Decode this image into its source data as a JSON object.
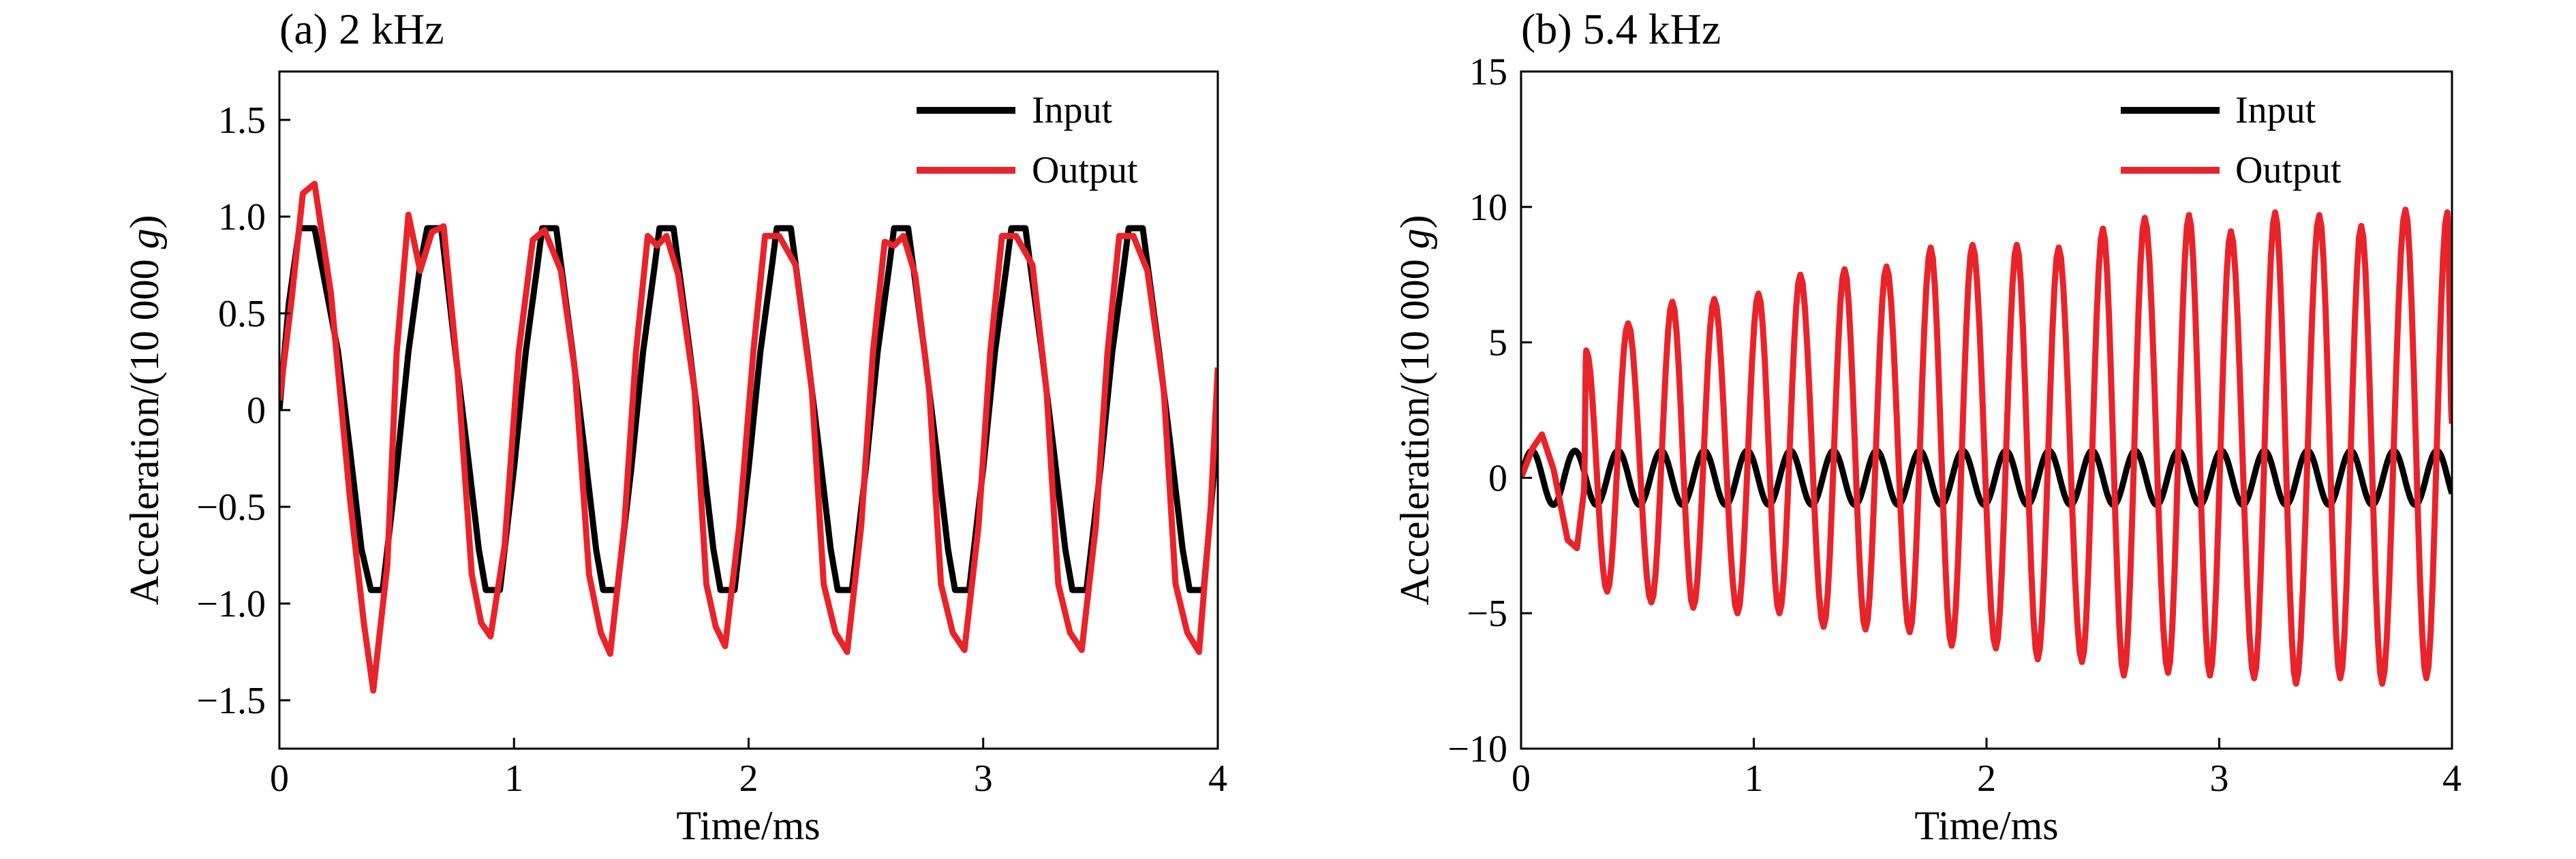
{
  "figure": {
    "background": "#ffffff"
  },
  "chart_data": [
    {
      "type": "line",
      "title": "(a) 2 kHz",
      "xlabel": "Time/ms",
      "ylabel_prefix": "Acceleration/(10 000 ",
      "ylabel_italic": "g",
      "ylabel_suffix": ")",
      "xlim": [
        0,
        4
      ],
      "ylim": [
        -1.75,
        1.75
      ],
      "xticks": [
        0,
        1,
        2,
        3,
        4
      ],
      "xtick_labels": [
        "0",
        "1",
        "2",
        "3",
        "4"
      ],
      "yticks": [
        -1.5,
        -1.0,
        -0.5,
        0,
        0.5,
        1.0,
        1.5
      ],
      "ytick_labels": [
        "−1.5",
        "−1.0",
        "−0.5",
        "0",
        "0.5",
        "1.0",
        "1.5"
      ],
      "grid": false,
      "legend_position": "top-right",
      "series": [
        {
          "name": "Input",
          "color": "#000000",
          "points": [
            [
              0,
              0
            ],
            [
              0.04,
              0.55
            ],
            [
              0.085,
              0.94
            ],
            [
              0.15,
              0.94
            ],
            [
              0.25,
              0.3
            ],
            [
              0.3,
              -0.2
            ],
            [
              0.35,
              -0.72
            ],
            [
              0.39,
              -0.93
            ],
            [
              0.44,
              -0.93
            ],
            [
              0.5,
              -0.3
            ],
            [
              0.55,
              0.3
            ],
            [
              0.6,
              0.75
            ],
            [
              0.63,
              0.94
            ],
            [
              0.69,
              0.94
            ],
            [
              0.75,
              0.3
            ],
            [
              0.8,
              -0.2
            ],
            [
              0.85,
              -0.72
            ],
            [
              0.88,
              -0.93
            ],
            [
              0.94,
              -0.93
            ],
            [
              1.0,
              -0.3
            ],
            [
              1.05,
              0.3
            ],
            [
              1.1,
              0.75
            ],
            [
              1.12,
              0.94
            ],
            [
              1.18,
              0.94
            ],
            [
              1.25,
              0.3
            ],
            [
              1.3,
              -0.2
            ],
            [
              1.35,
              -0.72
            ],
            [
              1.38,
              -0.93
            ],
            [
              1.44,
              -0.93
            ],
            [
              1.5,
              -0.3
            ],
            [
              1.55,
              0.3
            ],
            [
              1.6,
              0.75
            ],
            [
              1.62,
              0.94
            ],
            [
              1.68,
              0.94
            ],
            [
              1.75,
              0.3
            ],
            [
              1.8,
              -0.2
            ],
            [
              1.85,
              -0.72
            ],
            [
              1.88,
              -0.93
            ],
            [
              1.94,
              -0.93
            ],
            [
              2.0,
              -0.3
            ],
            [
              2.05,
              0.3
            ],
            [
              2.1,
              0.75
            ],
            [
              2.12,
              0.94
            ],
            [
              2.18,
              0.94
            ],
            [
              2.25,
              0.3
            ],
            [
              2.3,
              -0.2
            ],
            [
              2.35,
              -0.72
            ],
            [
              2.38,
              -0.93
            ],
            [
              2.44,
              -0.93
            ],
            [
              2.5,
              -0.3
            ],
            [
              2.55,
              0.3
            ],
            [
              2.6,
              0.75
            ],
            [
              2.62,
              0.94
            ],
            [
              2.68,
              0.94
            ],
            [
              2.75,
              0.3
            ],
            [
              2.8,
              -0.2
            ],
            [
              2.85,
              -0.72
            ],
            [
              2.88,
              -0.93
            ],
            [
              2.94,
              -0.93
            ],
            [
              3.0,
              -0.3
            ],
            [
              3.05,
              0.3
            ],
            [
              3.1,
              0.75
            ],
            [
              3.12,
              0.94
            ],
            [
              3.18,
              0.94
            ],
            [
              3.25,
              0.3
            ],
            [
              3.3,
              -0.2
            ],
            [
              3.35,
              -0.72
            ],
            [
              3.38,
              -0.93
            ],
            [
              3.44,
              -0.93
            ],
            [
              3.5,
              -0.3
            ],
            [
              3.55,
              0.3
            ],
            [
              3.6,
              0.75
            ],
            [
              3.62,
              0.94
            ],
            [
              3.68,
              0.94
            ],
            [
              3.75,
              0.3
            ],
            [
              3.8,
              -0.2
            ],
            [
              3.85,
              -0.72
            ],
            [
              3.88,
              -0.93
            ],
            [
              3.94,
              -0.93
            ],
            [
              4.0,
              -0.1
            ]
          ]
        },
        {
          "name": "Output",
          "color": "#e8242a",
          "points": [
            [
              0,
              0.05
            ],
            [
              0.05,
              0.55
            ],
            [
              0.1,
              1.12
            ],
            [
              0.15,
              1.17
            ],
            [
              0.22,
              0.6
            ],
            [
              0.3,
              -0.45
            ],
            [
              0.36,
              -1.1
            ],
            [
              0.4,
              -1.45
            ],
            [
              0.46,
              -0.8
            ],
            [
              0.5,
              0.3
            ],
            [
              0.55,
              1.01
            ],
            [
              0.6,
              0.72
            ],
            [
              0.65,
              0.92
            ],
            [
              0.7,
              0.95
            ],
            [
              0.76,
              0.2
            ],
            [
              0.82,
              -0.85
            ],
            [
              0.86,
              -1.1
            ],
            [
              0.9,
              -1.17
            ],
            [
              0.96,
              -0.7
            ],
            [
              1.02,
              0.3
            ],
            [
              1.08,
              0.88
            ],
            [
              1.13,
              0.93
            ],
            [
              1.2,
              0.72
            ],
            [
              1.26,
              0.2
            ],
            [
              1.32,
              -0.85
            ],
            [
              1.37,
              -1.15
            ],
            [
              1.41,
              -1.26
            ],
            [
              1.47,
              -0.6
            ],
            [
              1.52,
              0.3
            ],
            [
              1.57,
              0.9
            ],
            [
              1.61,
              0.85
            ],
            [
              1.65,
              0.9
            ],
            [
              1.7,
              0.7
            ],
            [
              1.77,
              0.1
            ],
            [
              1.82,
              -0.9
            ],
            [
              1.86,
              -1.12
            ],
            [
              1.9,
              -1.22
            ],
            [
              1.96,
              -0.6
            ],
            [
              2.02,
              0.3
            ],
            [
              2.07,
              0.9
            ],
            [
              2.13,
              0.9
            ],
            [
              2.2,
              0.75
            ],
            [
              2.27,
              0.1
            ],
            [
              2.32,
              -0.9
            ],
            [
              2.37,
              -1.15
            ],
            [
              2.42,
              -1.25
            ],
            [
              2.48,
              -0.6
            ],
            [
              2.53,
              0.3
            ],
            [
              2.58,
              0.87
            ],
            [
              2.62,
              0.85
            ],
            [
              2.66,
              0.9
            ],
            [
              2.71,
              0.7
            ],
            [
              2.77,
              0.1
            ],
            [
              2.82,
              -0.9
            ],
            [
              2.87,
              -1.15
            ],
            [
              2.92,
              -1.24
            ],
            [
              2.98,
              -0.6
            ],
            [
              3.03,
              0.3
            ],
            [
              3.08,
              0.9
            ],
            [
              3.14,
              0.9
            ],
            [
              3.21,
              0.75
            ],
            [
              3.27,
              0.1
            ],
            [
              3.32,
              -0.9
            ],
            [
              3.37,
              -1.15
            ],
            [
              3.42,
              -1.24
            ],
            [
              3.48,
              -0.6
            ],
            [
              3.53,
              0.3
            ],
            [
              3.58,
              0.9
            ],
            [
              3.64,
              0.9
            ],
            [
              3.7,
              0.72
            ],
            [
              3.77,
              0.1
            ],
            [
              3.82,
              -0.9
            ],
            [
              3.87,
              -1.15
            ],
            [
              3.92,
              -1.25
            ],
            [
              3.97,
              -0.5
            ],
            [
              4.0,
              0.22
            ]
          ]
        }
      ]
    },
    {
      "type": "line",
      "title": "(b) 5.4 kHz",
      "xlabel": "Time/ms",
      "ylabel_prefix": "Acceleration/(10 000 ",
      "ylabel_italic": "g",
      "ylabel_suffix": ")",
      "xlim": [
        0,
        4
      ],
      "ylim": [
        -10,
        15
      ],
      "xticks": [
        0,
        1,
        2,
        3,
        4
      ],
      "xtick_labels": [
        "0",
        "1",
        "2",
        "3",
        "4"
      ],
      "yticks": [
        -10,
        -5,
        0,
        5,
        10,
        15
      ],
      "ytick_labels": [
        "−10",
        "−5",
        "0",
        "5",
        "10",
        "15"
      ],
      "grid": false,
      "legend_position": "top-right",
      "series": [
        {
          "name": "Input",
          "color": "#000000",
          "frequency_khz": 5.4,
          "amplitude": 1.0
        },
        {
          "name": "Output",
          "color": "#e8242a",
          "frequency_khz": 5.4,
          "initial_points": [
            [
              0,
              0
            ],
            [
              0.05,
              1.1
            ],
            [
              0.09,
              1.6
            ],
            [
              0.14,
              0.3
            ],
            [
              0.2,
              -2.3
            ],
            [
              0.24,
              -2.6
            ],
            [
              0.27,
              -0.5
            ]
          ],
          "peaks": [
            [
              0.28,
              4.7
            ],
            [
              0.46,
              5.7
            ],
            [
              0.65,
              6.5
            ],
            [
              0.83,
              6.6
            ],
            [
              1.02,
              6.8
            ],
            [
              1.2,
              7.5
            ],
            [
              1.39,
              7.7
            ],
            [
              1.57,
              7.8
            ],
            [
              1.76,
              8.5
            ],
            [
              1.94,
              8.6
            ],
            [
              2.13,
              8.6
            ],
            [
              2.31,
              8.5
            ],
            [
              2.5,
              9.2
            ],
            [
              2.68,
              9.6
            ],
            [
              2.87,
              9.7
            ],
            [
              3.05,
              9.1
            ],
            [
              3.24,
              9.8
            ],
            [
              3.43,
              9.7
            ],
            [
              3.61,
              9.3
            ],
            [
              3.8,
              9.9
            ],
            [
              3.98,
              9.8
            ]
          ],
          "troughs": [
            [
              0.37,
              -4.2
            ],
            [
              0.56,
              -4.6
            ],
            [
              0.74,
              -4.8
            ],
            [
              0.93,
              -5.0
            ],
            [
              1.11,
              -5.0
            ],
            [
              1.3,
              -5.5
            ],
            [
              1.48,
              -5.6
            ],
            [
              1.67,
              -5.7
            ],
            [
              1.85,
              -6.2
            ],
            [
              2.04,
              -6.3
            ],
            [
              2.22,
              -6.7
            ],
            [
              2.41,
              -6.8
            ],
            [
              2.59,
              -7.3
            ],
            [
              2.78,
              -7.2
            ],
            [
              2.96,
              -7.3
            ],
            [
              3.15,
              -7.4
            ],
            [
              3.33,
              -7.6
            ],
            [
              3.52,
              -7.4
            ],
            [
              3.7,
              -7.6
            ],
            [
              3.89,
              -7.4
            ]
          ]
        }
      ]
    }
  ]
}
